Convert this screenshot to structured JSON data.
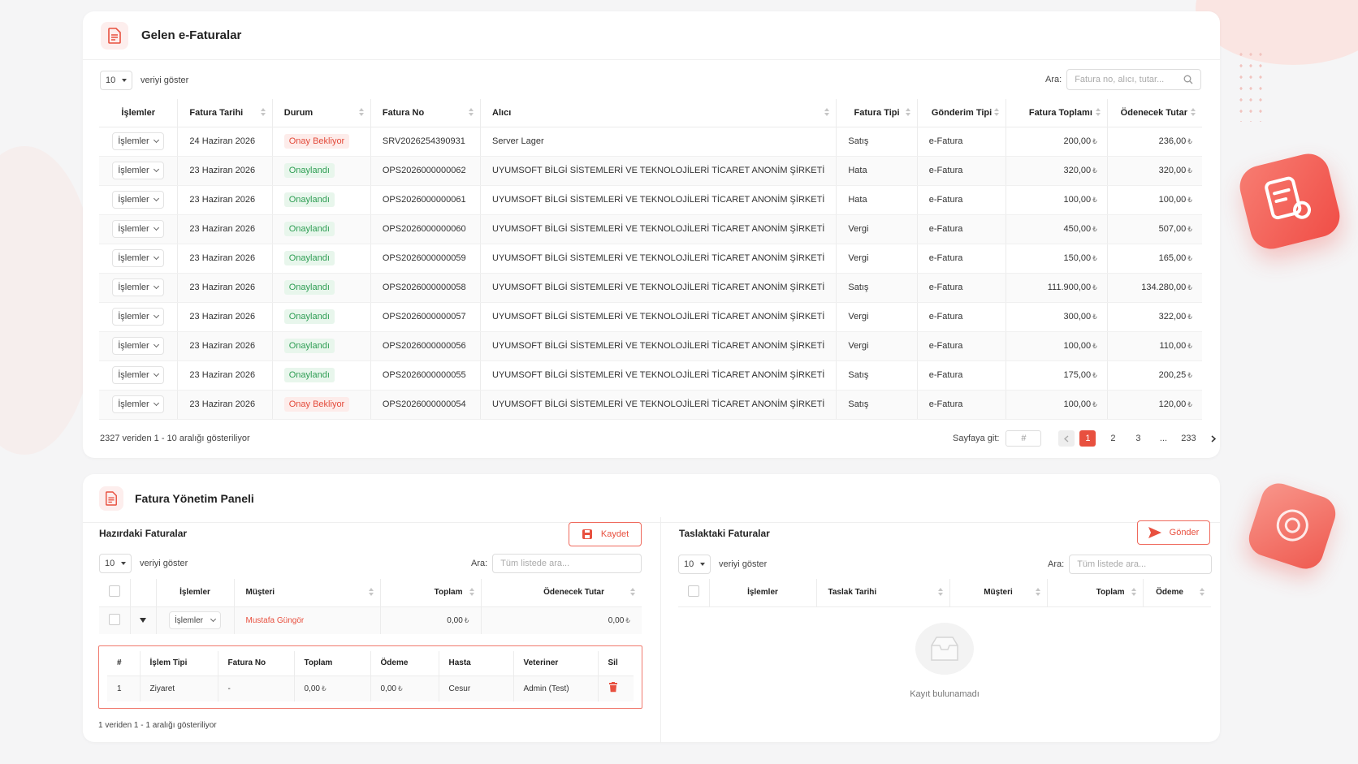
{
  "colors": {
    "accent": "#e8503f",
    "success": "#2f9e54",
    "warning": "#e34b3b"
  },
  "invoices_card": {
    "title": "Gelen e-Faturalar",
    "page_size": "10",
    "page_size_label": "veriyi göster",
    "search_label": "Ara:",
    "search_placeholder": "Fatura no, alıcı, tutar...",
    "columns": [
      "İşlemler",
      "Fatura Tarihi",
      "Durum",
      "Fatura No",
      "Alıcı",
      "Fatura Tipi",
      "Gönderim Tipi",
      "Fatura Toplamı",
      "Ödenecek Tutar"
    ],
    "action_label": "İşlemler",
    "currency": "₺",
    "rows": [
      {
        "date": "24 Haziran 2026",
        "status": "Onay Bekliyor",
        "status_type": "wait",
        "no": "SRV2026254390931",
        "buyer": "Server Lager",
        "type": "Satış",
        "send": "e-Fatura",
        "total": "200,00",
        "due": "236,00"
      },
      {
        "date": "23 Haziran 2026",
        "status": "Onaylandı",
        "status_type": "ok",
        "no": "OPS2026000000062",
        "buyer": "UYUMSOFT BİLGİ SİSTEMLERİ VE TEKNOLOJİLERİ TİCARET ANONİM ŞİRKETİ",
        "type": "Hata",
        "send": "e-Fatura",
        "total": "320,00",
        "due": "320,00"
      },
      {
        "date": "23 Haziran 2026",
        "status": "Onaylandı",
        "status_type": "ok",
        "no": "OPS2026000000061",
        "buyer": "UYUMSOFT BİLGİ SİSTEMLERİ VE TEKNOLOJİLERİ TİCARET ANONİM ŞİRKETİ",
        "type": "Hata",
        "send": "e-Fatura",
        "total": "100,00",
        "due": "100,00"
      },
      {
        "date": "23 Haziran 2026",
        "status": "Onaylandı",
        "status_type": "ok",
        "no": "OPS2026000000060",
        "buyer": "UYUMSOFT BİLGİ SİSTEMLERİ VE TEKNOLOJİLERİ TİCARET ANONİM ŞİRKETİ",
        "type": "Vergi",
        "send": "e-Fatura",
        "total": "450,00",
        "due": "507,00"
      },
      {
        "date": "23 Haziran 2026",
        "status": "Onaylandı",
        "status_type": "ok",
        "no": "OPS2026000000059",
        "buyer": "UYUMSOFT BİLGİ SİSTEMLERİ VE TEKNOLOJİLERİ TİCARET ANONİM ŞİRKETİ",
        "type": "Vergi",
        "send": "e-Fatura",
        "total": "150,00",
        "due": "165,00"
      },
      {
        "date": "23 Haziran 2026",
        "status": "Onaylandı",
        "status_type": "ok",
        "no": "OPS2026000000058",
        "buyer": "UYUMSOFT BİLGİ SİSTEMLERİ VE TEKNOLOJİLERİ TİCARET ANONİM ŞİRKETİ",
        "type": "Satış",
        "send": "e-Fatura",
        "total": "111.900,00",
        "due": "134.280,00"
      },
      {
        "date": "23 Haziran 2026",
        "status": "Onaylandı",
        "status_type": "ok",
        "no": "OPS2026000000057",
        "buyer": "UYUMSOFT BİLGİ SİSTEMLERİ VE TEKNOLOJİLERİ TİCARET ANONİM ŞİRKETİ",
        "type": "Vergi",
        "send": "e-Fatura",
        "total": "300,00",
        "due": "322,00"
      },
      {
        "date": "23 Haziran 2026",
        "status": "Onaylandı",
        "status_type": "ok",
        "no": "OPS2026000000056",
        "buyer": "UYUMSOFT BİLGİ SİSTEMLERİ VE TEKNOLOJİLERİ TİCARET ANONİM ŞİRKETİ",
        "type": "Vergi",
        "send": "e-Fatura",
        "total": "100,00",
        "due": "110,00"
      },
      {
        "date": "23 Haziran 2026",
        "status": "Onaylandı",
        "status_type": "ok",
        "no": "OPS2026000000055",
        "buyer": "UYUMSOFT BİLGİ SİSTEMLERİ VE TEKNOLOJİLERİ TİCARET ANONİM ŞİRKETİ",
        "type": "Satış",
        "send": "e-Fatura",
        "total": "175,00",
        "due": "200,25"
      },
      {
        "date": "23 Haziran 2026",
        "status": "Onay Bekliyor",
        "status_type": "wait",
        "no": "OPS2026000000054",
        "buyer": "UYUMSOFT BİLGİ SİSTEMLERİ VE TEKNOLOJİLERİ TİCARET ANONİM ŞİRKETİ",
        "type": "Satış",
        "send": "e-Fatura",
        "total": "100,00",
        "due": "120,00"
      }
    ],
    "info": "2327 veriden 1 - 10 aralığı gösteriliyor",
    "pager": {
      "goto_label": "Sayfaya git:",
      "goto_placeholder": "#",
      "pages": [
        "1",
        "2",
        "3",
        "...",
        "233"
      ],
      "active": "1"
    }
  },
  "panel": {
    "title": "Fatura Yönetim Paneli",
    "ready": {
      "title": "Hazırdaki Faturalar",
      "save_label": "Kaydet",
      "page_size": "10",
      "page_size_label": "veriyi göster",
      "search_label": "Ara:",
      "search_placeholder": "Tüm listede ara...",
      "columns": [
        "İşlemler",
        "Müşteri",
        "Toplam",
        "Ödenecek Tutar"
      ],
      "row": {
        "action": "İşlemler",
        "customer": "Mustafa Güngör",
        "total": "0,00",
        "due": "0,00"
      },
      "detail_columns": [
        "#",
        "İşlem Tipi",
        "Fatura No",
        "Toplam",
        "Ödeme",
        "Hasta",
        "Veteriner",
        "Sil"
      ],
      "detail_row": {
        "idx": "1",
        "type": "Ziyaret",
        "no": "-",
        "total": "0,00",
        "payment": "0,00",
        "patient": "Cesur",
        "vet": "Admin (Test)"
      },
      "info": "1 veriden 1 - 1 aralığı gösteriliyor"
    },
    "drafts": {
      "title": "Taslaktaki Faturalar",
      "send_label": "Gönder",
      "page_size": "10",
      "page_size_label": "veriyi göster",
      "search_label": "Ara:",
      "search_placeholder": "Tüm listede ara...",
      "columns": [
        "İşlemler",
        "Taslak Tarihi",
        "Müşteri",
        "Toplam",
        "Ödeme"
      ],
      "empty_text": "Kayıt bulunamadı"
    }
  }
}
